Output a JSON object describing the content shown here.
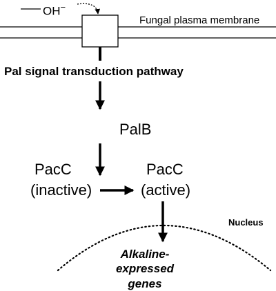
{
  "hydroxide": {
    "label": "OH",
    "charge": "−"
  },
  "membrane": {
    "label": "Fungal plasma membrane"
  },
  "pathway": {
    "label": "Pal signal transduction pathway"
  },
  "palb": {
    "label": "PalB"
  },
  "pacc_inactive": {
    "name": "PacC",
    "state": "(inactive)"
  },
  "pacc_active": {
    "name": "PacC",
    "state": "(active)"
  },
  "nucleus": {
    "label": "Nucleus"
  },
  "genes": {
    "line1": "Alkaline-expressed",
    "line2": "genes"
  }
}
